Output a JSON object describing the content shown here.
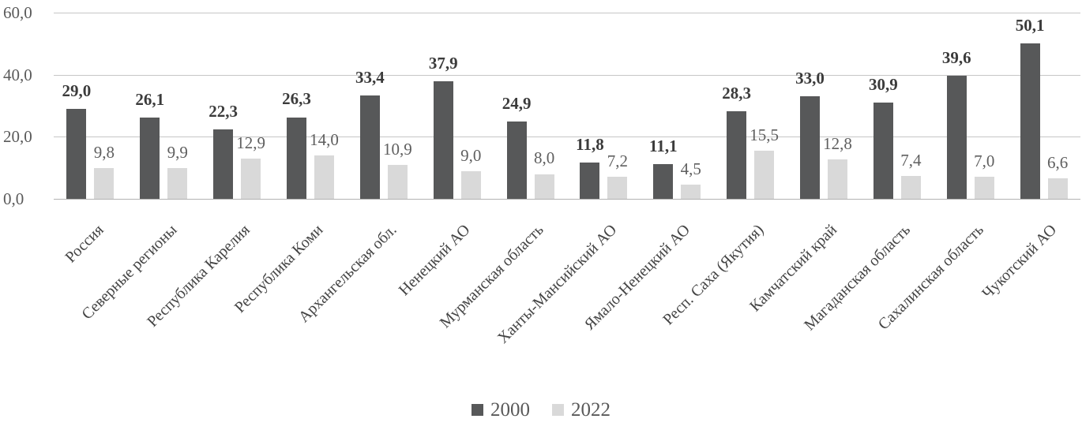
{
  "chart_data": {
    "type": "bar",
    "categories": [
      "Россия",
      "Северные регионы",
      "Республика Карелия",
      "Республика Коми",
      "Архангельская обл.",
      "Ненецкий АО",
      "Мурманская область",
      "Ханты-Мансийский АО",
      "Ямало-Ненецкий АО",
      "Респ. Саха (Якутия)",
      "Камчатский край",
      "Магаданская область",
      "Сахалинская область",
      "Чукотский АО"
    ],
    "series": [
      {
        "name": "2000",
        "color": "#575859",
        "values": [
          29.0,
          26.1,
          22.3,
          26.3,
          33.4,
          37.9,
          24.9,
          11.8,
          11.1,
          28.3,
          33.0,
          30.9,
          39.6,
          50.1
        ]
      },
      {
        "name": "2022",
        "color": "#d9d9d9",
        "values": [
          9.8,
          9.9,
          12.9,
          14.0,
          10.9,
          9.0,
          8.0,
          7.2,
          4.5,
          15.5,
          12.8,
          7.4,
          7.0,
          6.6
        ]
      }
    ],
    "title": "",
    "xlabel": "",
    "ylabel": "",
    "ylim": [
      0,
      60
    ],
    "yticks": [
      0,
      20,
      40,
      60
    ],
    "decimal_separator": ",",
    "grid": true,
    "legend_position": "bottom"
  },
  "legend": {
    "items": [
      {
        "label": "2000",
        "color": "#575859"
      },
      {
        "label": "2022",
        "color": "#d9d9d9"
      }
    ]
  },
  "colors": {
    "grid": "#c6c6c6",
    "baseline": "#b3b3b3",
    "tick_text": "#5a5a5a",
    "label_2000": "#3b3b3b",
    "label_2022": "#5f5f5f",
    "category_text": "#434343",
    "background": "#ffffff"
  }
}
